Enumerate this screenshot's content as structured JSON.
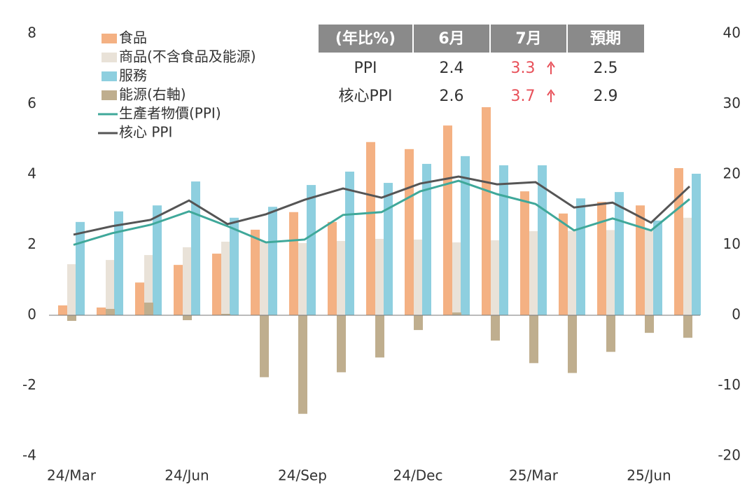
{
  "chart_data": {
    "type": "bar",
    "categories": [
      "24/Mar",
      null,
      null,
      "24/Jun",
      null,
      null,
      "24/Sep",
      null,
      null,
      "24/Dec",
      null,
      null,
      "25/Mar",
      null,
      null,
      "25/Jun",
      null
    ],
    "ylim": [
      -4,
      8
    ],
    "yticks": [
      -4,
      -2,
      0,
      2,
      4,
      6,
      8
    ],
    "y2lim": [
      -20,
      40
    ],
    "y2ticks": [
      -20,
      -10,
      0,
      10,
      20,
      30,
      40
    ],
    "series": [
      {
        "name": "食品",
        "type": "bar",
        "color": "#f4b183",
        "values": [
          0.28,
          0.22,
          0.93,
          1.43,
          1.75,
          2.43,
          2.93,
          2.65,
          4.92,
          4.72,
          5.39,
          5.91,
          3.52,
          2.89,
          3.22,
          3.12,
          4.18
        ]
      },
      {
        "name": "商品(不含食品及能源)",
        "type": "bar",
        "color": "#e9e2d8",
        "values": [
          1.45,
          1.57,
          1.71,
          1.93,
          2.09,
          2.1,
          2.05,
          2.11,
          2.17,
          2.15,
          2.07,
          2.13,
          2.39,
          2.4,
          2.42,
          2.45,
          2.77
        ]
      },
      {
        "name": "服務",
        "type": "bar",
        "color": "#8ecfdf",
        "values": [
          2.65,
          2.95,
          3.12,
          3.8,
          2.77,
          3.08,
          3.7,
          4.08,
          3.76,
          4.3,
          4.52,
          4.26,
          4.26,
          3.32,
          3.5,
          2.69,
          4.02
        ]
      },
      {
        "name": "能源(右軸)",
        "type": "bar",
        "axis": "y2",
        "color": "#bfae8e",
        "values": [
          -0.8,
          0.9,
          1.8,
          -0.7,
          0.2,
          -8.8,
          -14.0,
          -8.1,
          -6.0,
          -2.1,
          0.4,
          -3.6,
          -6.8,
          -8.2,
          -5.2,
          -2.5,
          -3.2
        ]
      },
      {
        "name": "生產者物價(PPI)",
        "type": "line",
        "color": "#3fa89a",
        "values": [
          2.0,
          2.33,
          2.57,
          2.95,
          2.53,
          2.07,
          2.15,
          2.85,
          2.93,
          3.52,
          3.82,
          3.44,
          3.16,
          2.41,
          2.75,
          2.41,
          3.3
        ]
      },
      {
        "name": "核心 PPI",
        "type": "line",
        "color": "#555555",
        "values": [
          2.29,
          2.53,
          2.71,
          3.26,
          2.59,
          2.87,
          3.28,
          3.6,
          3.34,
          3.74,
          3.94,
          3.72,
          3.78,
          3.06,
          3.2,
          2.63,
          3.66
        ]
      }
    ]
  },
  "table": {
    "header": [
      "(年比%)",
      "6月",
      "7月",
      "預期"
    ],
    "rows": [
      [
        "PPI",
        2.4,
        3.3,
        2.5
      ],
      [
        "核心PPI",
        2.6,
        3.7,
        2.9
      ]
    ]
  }
}
